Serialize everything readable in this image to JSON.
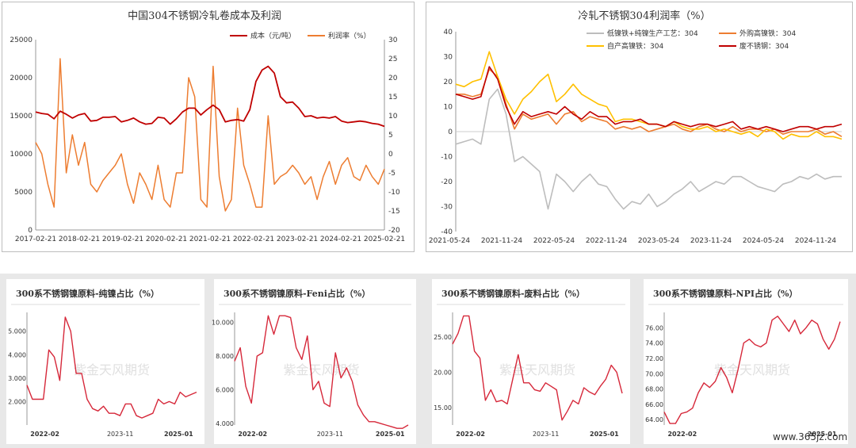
{
  "charts": [
    {
      "id": "c1",
      "type": "line",
      "title": "中国304不锈钢冷轧卷成本及利润",
      "ylim": [
        0,
        25000
      ],
      "yticks": [
        "0",
        "5000",
        "10000",
        "15000",
        "20000",
        "25000"
      ],
      "y2lim": [
        -20,
        30
      ],
      "y2ticks": [
        "-20",
        "-15",
        "-10",
        "-5",
        "0",
        "5",
        "10",
        "15",
        "20",
        "25",
        "30"
      ],
      "xticks": [
        "2017-02-21",
        "2018-02-21",
        "2019-02-21",
        "2020-02-21",
        "2021-02-21",
        "2022-02-21",
        "2023-02-21",
        "2024-02-21",
        "2025-02-21"
      ],
      "legend": [
        "成本（元/吨）",
        "利润率（%）"
      ],
      "series": [
        {
          "name": "成本（元/吨）",
          "axis": "left",
          "color": "#c00000",
          "values": [
            15500,
            15300,
            15200,
            14600,
            15600,
            15200,
            14700,
            15100,
            15300,
            14300,
            14400,
            14800,
            14800,
            14900,
            14200,
            14400,
            14700,
            14200,
            13900,
            14000,
            14800,
            14700,
            13900,
            14600,
            15500,
            16000,
            16000,
            15100,
            15800,
            16400,
            15800,
            14200,
            14400,
            14500,
            14300,
            15800,
            19500,
            21000,
            21500,
            20600,
            17500,
            16700,
            16800,
            16000,
            14900,
            15000,
            14700,
            14800,
            14700,
            14900,
            14300,
            14100,
            14200,
            14300,
            14200,
            14000,
            13900,
            13600
          ]
        },
        {
          "name": "利润率（%）",
          "axis": "right",
          "color": "#ed7d31",
          "values": [
            3,
            0,
            -8,
            -14,
            25,
            -5,
            5,
            -3,
            3,
            -8,
            -10,
            -7,
            -5,
            -3,
            0,
            -8,
            -13,
            -5,
            -8,
            -12,
            -3,
            -12,
            -14,
            -5,
            -5,
            20,
            15,
            -12,
            -14,
            23,
            -6,
            -15,
            -12,
            12,
            -3,
            -8,
            -14,
            -14,
            10,
            -8,
            -6,
            -5,
            -3,
            -5,
            -8,
            -6,
            -12,
            -6,
            -2,
            -8,
            -3,
            -1,
            -6,
            -7,
            -3,
            -6,
            -8,
            -4
          ]
        }
      ]
    },
    {
      "id": "c2",
      "type": "line",
      "title": "冷轧不锈钢304利润率（%）",
      "ylim": [
        -40,
        40
      ],
      "yticks": [
        "-40",
        "-30",
        "-20",
        "-10",
        "0",
        "10",
        "20",
        "30",
        "40"
      ],
      "xticks": [
        "2021-05-24",
        "2021-11-24",
        "2022-05-24",
        "2022-11-24",
        "2023-05-24",
        "2023-11-24",
        "2024-05-24",
        "2024-11-24"
      ],
      "legend": [
        "低镍铁+纯镍生产工艺：304",
        "外购高镍铁：304",
        "自产高镍铁：304",
        "废不锈钢：304"
      ],
      "series": [
        {
          "name": "低镍铁+纯镍生产工艺：304",
          "color": "#bdbdbd",
          "values": [
            -5,
            -4,
            -3,
            -5,
            13,
            17,
            7,
            -12,
            -10,
            -13,
            -16,
            -31,
            -17,
            -20,
            -24,
            -20,
            -17,
            -21,
            -22,
            -27,
            -31,
            -28,
            -29,
            -25,
            -30,
            -28,
            -25,
            -23,
            -20,
            -24,
            -22,
            -20,
            -21,
            -18,
            -18,
            -20,
            -22,
            -23,
            -24,
            -21,
            -20,
            -18,
            -19,
            -17,
            -19,
            -18,
            -18
          ]
        },
        {
          "name": "外购高镍铁：304",
          "color": "#ed7d31",
          "values": [
            15,
            15,
            14,
            15,
            25,
            22,
            11,
            1,
            7,
            5,
            6,
            7,
            3,
            7,
            8,
            4,
            6,
            5,
            4,
            1,
            2,
            1,
            2,
            0,
            1,
            2,
            3,
            1,
            0,
            2,
            3,
            1,
            0,
            2,
            0,
            1,
            1,
            0,
            1,
            -1,
            0,
            0,
            0,
            1,
            -1,
            0,
            -2
          ]
        },
        {
          "name": "自产高镍铁：304",
          "color": "#ffc000",
          "values": [
            19,
            18,
            20,
            21,
            32,
            22,
            13,
            7,
            13,
            16,
            20,
            23,
            12,
            15,
            19,
            15,
            13,
            11,
            10,
            4,
            5,
            5,
            4,
            3,
            3,
            2,
            4,
            2,
            1,
            1,
            2,
            0,
            1,
            0,
            -1,
            0,
            -2,
            1,
            0,
            -3,
            -1,
            -2,
            -2,
            0,
            -2,
            -2,
            -3
          ]
        },
        {
          "name": "废不锈钢：304",
          "color": "#c00000",
          "values": [
            15,
            14,
            13,
            14,
            26,
            21,
            10,
            3,
            8,
            6,
            7,
            8,
            7,
            10,
            7,
            5,
            8,
            6,
            6,
            3,
            4,
            4,
            5,
            3,
            3,
            2,
            4,
            3,
            2,
            3,
            3,
            2,
            3,
            4,
            1,
            2,
            1,
            2,
            1,
            0,
            1,
            2,
            2,
            1,
            2,
            2,
            3
          ]
        }
      ]
    },
    {
      "id": "c3",
      "type": "line",
      "title": "300系不锈钢镍原料-纯镍占比（%）",
      "ylim": [
        1.0,
        5.8
      ],
      "yticks": [
        "2.000",
        "3.000",
        "4.000",
        "5.000"
      ],
      "ytickvals": [
        2,
        3,
        4,
        5
      ],
      "xticks": [
        "2022-02",
        "2023-11",
        "2025-01"
      ],
      "watermark": "紫金天风期货",
      "series": [
        {
          "name": "纯镍占比",
          "color": "#d6283a",
          "values": [
            2.7,
            2.1,
            2.1,
            2.1,
            4.2,
            3.9,
            2.9,
            5.6,
            5.0,
            3.2,
            3.2,
            2.1,
            1.7,
            1.6,
            1.8,
            1.5,
            1.5,
            1.4,
            1.9,
            1.9,
            1.4,
            1.3,
            1.4,
            1.5,
            2.1,
            1.9,
            2.0,
            1.9,
            2.4,
            2.2,
            2.3,
            2.4
          ]
        }
      ]
    },
    {
      "id": "c4",
      "type": "line",
      "title": "300系不锈钢镍原料-Feni占比（%）",
      "ylim": [
        3.9,
        10.6
      ],
      "yticks": [
        "4.000",
        "6.000",
        "8.000",
        "10.000"
      ],
      "ytickvals": [
        4,
        6,
        8,
        10
      ],
      "xticks": [
        "2022-02",
        "2023-11",
        "2025-01"
      ],
      "watermark": "紫金天风期货",
      "series": [
        {
          "name": "Feni占比",
          "color": "#d6283a",
          "values": [
            7.7,
            8.5,
            6.2,
            5.2,
            8.0,
            8.2,
            10.4,
            9.3,
            10.4,
            10.4,
            10.3,
            8.5,
            7.8,
            9.2,
            6.0,
            6.5,
            5.2,
            5.0,
            8.2,
            6.7,
            7.3,
            6.5,
            5.1,
            4.5,
            4.1,
            4.1,
            4.0,
            3.9,
            3.8,
            3.7,
            3.7,
            3.9
          ]
        }
      ]
    },
    {
      "id": "c5",
      "type": "line",
      "title": "300系不锈钢镍原料-废料占比（%）",
      "ylim": [
        12.5,
        28.5
      ],
      "yticks": [
        "15.00",
        "20.00",
        "25.00"
      ],
      "ytickvals": [
        15,
        20,
        25
      ],
      "xticks": [
        "2022-02",
        "2023-11",
        "2025-01"
      ],
      "watermark": "紫金天风期货",
      "series": [
        {
          "name": "废料占比",
          "color": "#d6283a",
          "values": [
            24.0,
            25.5,
            28.0,
            28.0,
            23.0,
            22.0,
            16.0,
            17.5,
            15.8,
            16.0,
            15.5,
            19.0,
            22.5,
            18.5,
            18.5,
            17.5,
            17.3,
            18.5,
            18.0,
            17.5,
            13.2,
            14.5,
            16.0,
            15.5,
            17.8,
            17.2,
            16.8,
            18.0,
            19.0,
            21.0,
            20.0,
            17.0
          ]
        }
      ]
    },
    {
      "id": "c6",
      "type": "line",
      "title": "300系不锈钢镍原料-NPI占比（%）",
      "ylim": [
        63.3,
        78.0
      ],
      "yticks": [
        "64.00",
        "66.00",
        "68.00",
        "70.00",
        "72.00",
        "74.00",
        "76.00"
      ],
      "ytickvals": [
        64,
        66,
        68,
        70,
        72,
        74,
        76
      ],
      "xticks": [
        "2022-02",
        "2025-01"
      ],
      "watermark": "紫金天风期货",
      "series": [
        {
          "name": "NPI占比",
          "color": "#d6283a",
          "values": [
            65.0,
            63.5,
            63.5,
            64.8,
            65.0,
            65.5,
            67.5,
            68.8,
            68.2,
            69.0,
            70.8,
            69.5,
            67.5,
            70.5,
            74.0,
            74.5,
            73.8,
            73.5,
            74.0,
            77.0,
            77.5,
            76.5,
            75.5,
            77.0,
            75.2,
            76.0,
            77.0,
            76.5,
            74.5,
            73.2,
            74.5,
            76.8
          ]
        }
      ]
    }
  ],
  "site_watermark": "www.365jz.com"
}
